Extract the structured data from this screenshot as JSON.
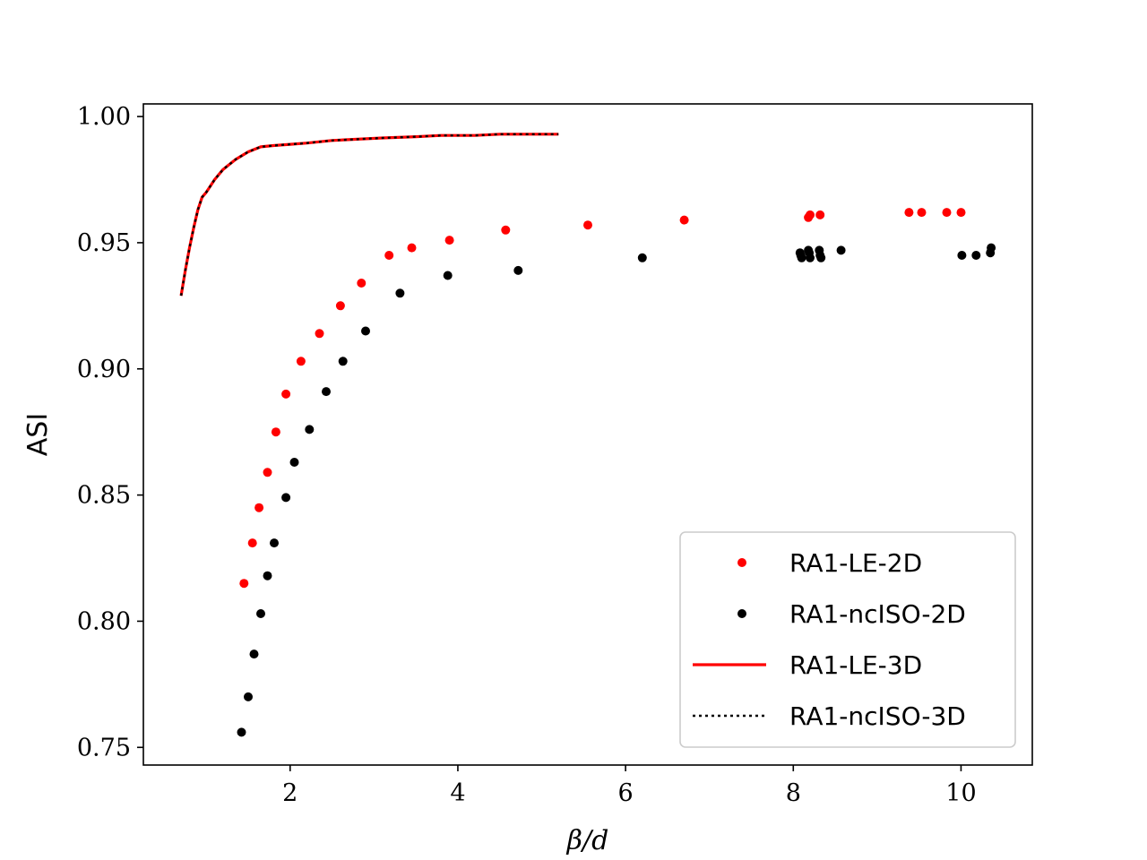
{
  "chart_data": {
    "type": "line",
    "title": "",
    "xlabel": "β/d",
    "ylabel": "ASI",
    "xlim": [
      0.25,
      10.85
    ],
    "ylim": [
      0.743,
      1.005
    ],
    "xticks": [
      2,
      4,
      6,
      8,
      10
    ],
    "xtick_labels": [
      "2",
      "4",
      "6",
      "8",
      "10"
    ],
    "yticks": [
      0.75,
      0.8,
      0.85,
      0.9,
      0.95,
      1.0
    ],
    "ytick_labels": [
      "0.75",
      "0.80",
      "0.85",
      "0.90",
      "0.95",
      "1.00"
    ],
    "grid": false,
    "legend_position": "lower-right",
    "series": [
      {
        "name": "RA1-LE-2D",
        "style": "markers",
        "color": "#ff0000",
        "x": [
          1.45,
          1.55,
          1.63,
          1.73,
          1.83,
          1.95,
          2.13,
          2.35,
          2.6,
          2.85,
          3.18,
          3.45,
          3.9,
          4.57,
          5.55,
          6.7,
          8.18,
          8.2,
          8.32,
          9.38,
          9.53,
          9.83,
          10.0
        ],
        "y": [
          0.815,
          0.831,
          0.845,
          0.859,
          0.875,
          0.89,
          0.903,
          0.914,
          0.925,
          0.934,
          0.945,
          0.948,
          0.951,
          0.955,
          0.957,
          0.959,
          0.96,
          0.961,
          0.961,
          0.962,
          0.962,
          0.962,
          0.962
        ]
      },
      {
        "name": "RA1-ncISO-2D",
        "style": "markers",
        "color": "#000000",
        "x": [
          1.42,
          1.5,
          1.57,
          1.65,
          1.73,
          1.81,
          1.95,
          2.05,
          2.23,
          2.43,
          2.63,
          2.9,
          3.31,
          3.88,
          4.72,
          6.2,
          8.08,
          8.09,
          8.1,
          8.18,
          8.19,
          8.2,
          8.31,
          8.32,
          8.33,
          8.57,
          10.01,
          10.18,
          10.35,
          10.36
        ],
        "y": [
          0.756,
          0.77,
          0.787,
          0.803,
          0.818,
          0.831,
          0.849,
          0.863,
          0.876,
          0.891,
          0.903,
          0.915,
          0.93,
          0.937,
          0.939,
          0.944,
          0.946,
          0.945,
          0.944,
          0.947,
          0.946,
          0.944,
          0.947,
          0.945,
          0.944,
          0.947,
          0.945,
          0.945,
          0.946,
          0.948
        ]
      },
      {
        "name": "RA1-LE-3D",
        "style": "solid",
        "color": "#ff0000",
        "x": [
          0.7,
          0.75,
          0.8,
          0.85,
          0.9,
          0.95,
          1.0,
          1.1,
          1.2,
          1.35,
          1.5,
          1.65,
          1.8,
          2.0,
          2.2,
          2.5,
          2.8,
          3.1,
          3.5,
          3.8,
          4.2,
          4.5,
          4.8,
          5.0,
          5.2
        ],
        "y": [
          0.929,
          0.939,
          0.948,
          0.956,
          0.963,
          0.968,
          0.97,
          0.975,
          0.979,
          0.983,
          0.986,
          0.988,
          0.9885,
          0.989,
          0.9895,
          0.9905,
          0.991,
          0.9915,
          0.992,
          0.9925,
          0.9925,
          0.993,
          0.993,
          0.993,
          0.993
        ]
      },
      {
        "name": "RA1-ncISO-3D",
        "style": "dotted",
        "color": "#000000",
        "x": [
          0.7,
          0.75,
          0.8,
          0.85,
          0.9,
          0.95,
          1.0,
          1.1,
          1.2,
          1.35,
          1.5,
          1.65,
          1.8,
          2.0,
          2.2,
          2.5,
          2.8,
          3.1,
          3.5,
          3.8,
          4.2,
          4.5,
          4.8,
          5.0,
          5.2
        ],
        "y": [
          0.929,
          0.939,
          0.948,
          0.956,
          0.963,
          0.968,
          0.97,
          0.975,
          0.979,
          0.983,
          0.986,
          0.988,
          0.9885,
          0.989,
          0.9895,
          0.9905,
          0.991,
          0.9915,
          0.992,
          0.9925,
          0.9925,
          0.993,
          0.993,
          0.993,
          0.993
        ]
      }
    ]
  }
}
